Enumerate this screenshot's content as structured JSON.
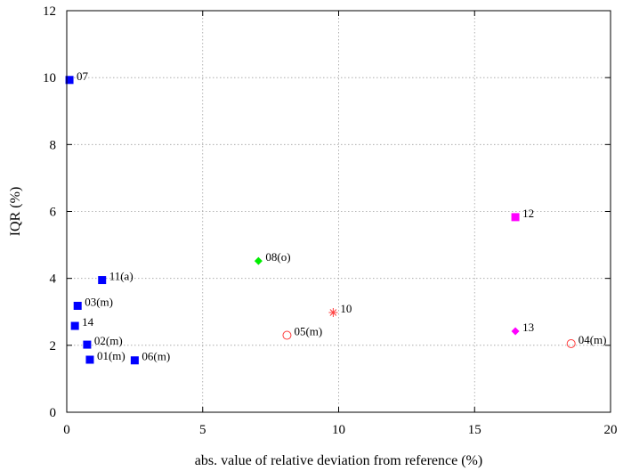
{
  "chart_data": {
    "type": "scatter",
    "title": "",
    "xlabel": "abs. value of relative deviation from reference (%)",
    "ylabel": "IQR (%)",
    "xlim": [
      0,
      20
    ],
    "ylim": [
      0,
      12
    ],
    "xticks": [
      0,
      5,
      10,
      15,
      20
    ],
    "yticks": [
      0,
      2,
      4,
      6,
      8,
      10,
      12
    ],
    "grid": true,
    "points": [
      {
        "label": "07",
        "x": 0.1,
        "y": 9.93,
        "marker": "square",
        "color": "#0000ff"
      },
      {
        "label": "11(a)",
        "x": 1.3,
        "y": 3.95,
        "marker": "square",
        "color": "#0000ff"
      },
      {
        "label": "03(m)",
        "x": 0.4,
        "y": 3.18,
        "marker": "square",
        "color": "#0000ff"
      },
      {
        "label": "14",
        "x": 0.3,
        "y": 2.58,
        "marker": "square",
        "color": "#0000ff"
      },
      {
        "label": "02(m)",
        "x": 0.75,
        "y": 2.02,
        "marker": "square",
        "color": "#0000ff"
      },
      {
        "label": "01(m)",
        "x": 0.85,
        "y": 1.57,
        "marker": "square",
        "color": "#0000ff"
      },
      {
        "label": "06(m)",
        "x": 2.5,
        "y": 1.55,
        "marker": "square",
        "color": "#0000ff"
      },
      {
        "label": "08(o)",
        "x": 7.05,
        "y": 4.52,
        "marker": "diamond",
        "color": "#00ee00"
      },
      {
        "label": "05(m)",
        "x": 8.1,
        "y": 2.3,
        "marker": "circle",
        "color": "#ff4040"
      },
      {
        "label": "10",
        "x": 9.8,
        "y": 2.98,
        "marker": "star",
        "color": "#ff4040"
      },
      {
        "label": "12",
        "x": 16.5,
        "y": 5.83,
        "marker": "square",
        "color": "#ff00ff"
      },
      {
        "label": "13",
        "x": 16.5,
        "y": 2.42,
        "marker": "diamond",
        "color": "#ff00ff"
      },
      {
        "label": "04(m)",
        "x": 18.55,
        "y": 2.05,
        "marker": "circle",
        "color": "#ff4040"
      }
    ]
  }
}
